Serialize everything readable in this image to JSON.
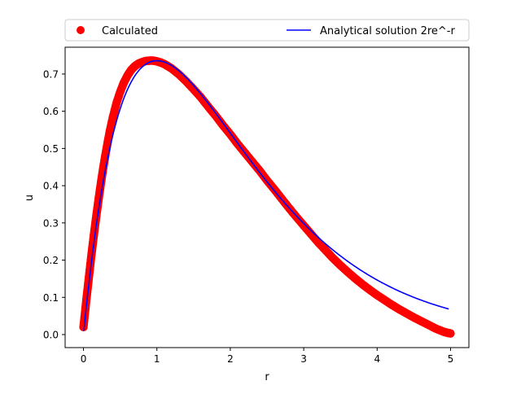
{
  "chart_data": {
    "type": "scatter",
    "xlabel": "r",
    "ylabel": "u",
    "xlim": [
      -0.25,
      5.25
    ],
    "ylim": [
      -0.035,
      0.772
    ],
    "xticks": [
      0,
      1,
      2,
      3,
      4,
      5
    ],
    "yticks": [
      0.0,
      0.1,
      0.2,
      0.3,
      0.4,
      0.5,
      0.6,
      0.7
    ],
    "xtick_labels": [
      "0",
      "1",
      "2",
      "3",
      "4",
      "5"
    ],
    "ytick_labels": [
      "0.0",
      "0.1",
      "0.2",
      "0.3",
      "0.4",
      "0.5",
      "0.6",
      "0.7"
    ],
    "grid": false,
    "legend": {
      "placement": "top, above plot (2 columns)",
      "entries": [
        "Calculated",
        "Analytical solution 2re^-r"
      ]
    },
    "series": [
      {
        "name": "Calculated",
        "style": "markers",
        "color": "#ff0000",
        "x": [
          0.0,
          0.02,
          0.04,
          0.06,
          0.08,
          0.1,
          0.12,
          0.14,
          0.16,
          0.18,
          0.2,
          0.22,
          0.24,
          0.26,
          0.28,
          0.3,
          0.33,
          0.36,
          0.4,
          0.45,
          0.5,
          0.55,
          0.6,
          0.65,
          0.7,
          0.75,
          0.8,
          0.85,
          0.9,
          0.95,
          1.0,
          1.05,
          1.1,
          1.15,
          1.2,
          1.3,
          1.4,
          1.5,
          1.6,
          1.7,
          1.8,
          1.9,
          2.0,
          2.1,
          2.2,
          2.3,
          2.4,
          2.5,
          2.6,
          2.7,
          2.8,
          2.9,
          3.0,
          3.1,
          3.2,
          3.3,
          3.4,
          3.5,
          3.6,
          3.7,
          3.8,
          3.9,
          4.0,
          4.1,
          4.2,
          4.3,
          4.4,
          4.5,
          4.6,
          4.7,
          4.8,
          4.9,
          4.95,
          5.0
        ],
        "y": [
          0.02,
          0.058,
          0.095,
          0.13,
          0.165,
          0.2,
          0.233,
          0.265,
          0.296,
          0.326,
          0.355,
          0.383,
          0.41,
          0.436,
          0.461,
          0.484,
          0.517,
          0.548,
          0.584,
          0.622,
          0.652,
          0.677,
          0.696,
          0.711,
          0.721,
          0.728,
          0.732,
          0.735,
          0.736,
          0.736,
          0.734,
          0.731,
          0.727,
          0.721,
          0.715,
          0.699,
          0.68,
          0.659,
          0.637,
          0.612,
          0.588,
          0.562,
          0.538,
          0.512,
          0.488,
          0.464,
          0.44,
          0.414,
          0.39,
          0.365,
          0.34,
          0.316,
          0.293,
          0.27,
          0.247,
          0.226,
          0.205,
          0.186,
          0.168,
          0.151,
          0.135,
          0.12,
          0.106,
          0.093,
          0.08,
          0.068,
          0.057,
          0.046,
          0.036,
          0.026,
          0.016,
          0.008,
          0.005,
          0.003
        ]
      },
      {
        "name": "Analytical solution 2re^-r",
        "style": "line",
        "color": "#0000ff",
        "function": "2*r*exp(-r)",
        "x_range": [
          0.005,
          4.975
        ]
      }
    ]
  }
}
